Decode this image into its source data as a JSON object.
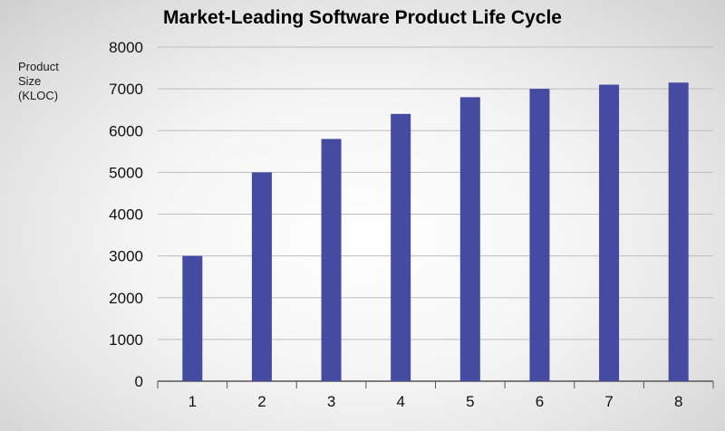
{
  "chart_data": {
    "type": "bar",
    "title": "Market-Leading Software Product Life Cycle",
    "ylabel_lines": [
      "Product",
      "Size",
      "(KLOC)"
    ],
    "xlabel": "",
    "categories": [
      "1",
      "2",
      "3",
      "4",
      "5",
      "6",
      "7",
      "8"
    ],
    "values": [
      3000,
      5000,
      5800,
      6400,
      6800,
      7000,
      7100,
      7150
    ],
    "ylim": [
      0,
      8000
    ],
    "yticks": [
      0,
      1000,
      2000,
      3000,
      4000,
      5000,
      6000,
      7000,
      8000
    ],
    "grid": true,
    "legend": "none",
    "bar_color": "#454ba0",
    "grid_color": "#bdbdbd",
    "axis_color": "#555555"
  }
}
